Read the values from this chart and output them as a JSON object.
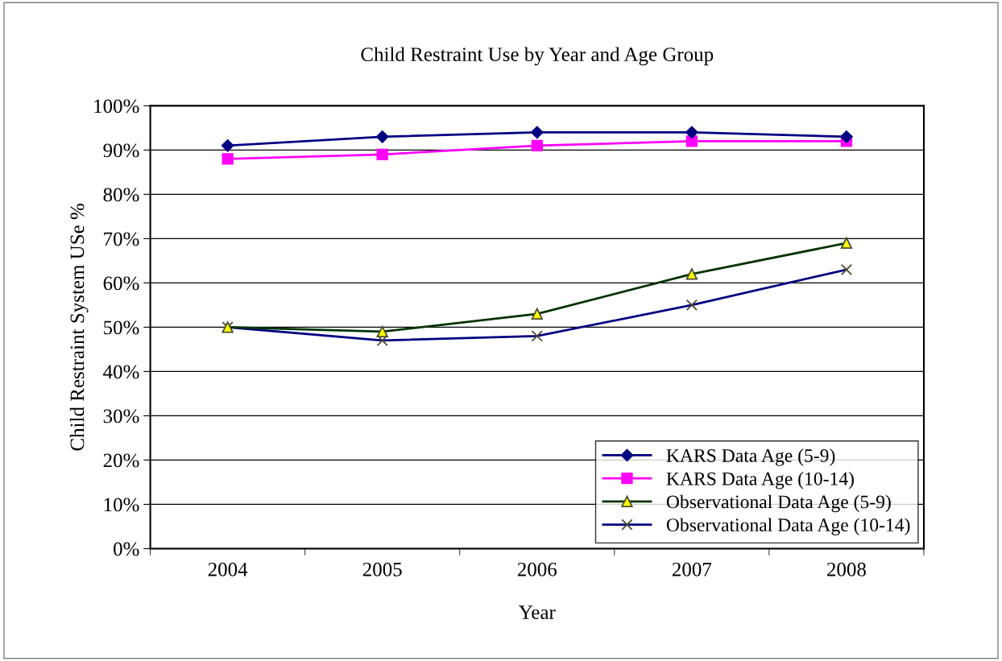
{
  "chart_data": {
    "type": "line",
    "title": "Child Restraint Use by Year and Age Group",
    "xlabel": "Year",
    "ylabel": "Child Restraint System USe %",
    "categories": [
      "2004",
      "2005",
      "2006",
      "2007",
      "2008"
    ],
    "series": [
      {
        "name": "KARS Data Age (5-9)",
        "color": "#000080",
        "marker": "diamond",
        "values": [
          91,
          93,
          94,
          94,
          93
        ]
      },
      {
        "name": "KARS Data Age (10-14)",
        "color": "#ff00ff",
        "marker": "square",
        "values": [
          88,
          89,
          91,
          92,
          92
        ]
      },
      {
        "name": "Observational Data Age (5-9)",
        "color": "#003300",
        "marker": "triangle",
        "values": [
          50,
          49,
          53,
          62,
          69
        ]
      },
      {
        "name": "Observational Data Age (10-14)",
        "color": "#000080",
        "marker": "cross",
        "values": [
          50,
          47,
          48,
          55,
          63
        ]
      }
    ],
    "ylim": [
      0,
      100
    ],
    "yticks": [
      {
        "value": 0,
        "label": "0%"
      },
      {
        "value": 10,
        "label": "10%"
      },
      {
        "value": 20,
        "label": "20%"
      },
      {
        "value": 30,
        "label": "30%"
      },
      {
        "value": 40,
        "label": "40%"
      },
      {
        "value": 50,
        "label": "50%"
      },
      {
        "value": 60,
        "label": "60%"
      },
      {
        "value": 70,
        "label": "70%"
      },
      {
        "value": 80,
        "label": "80%"
      },
      {
        "value": 90,
        "label": "90%"
      },
      {
        "value": 100,
        "label": "100%"
      }
    ],
    "grid": "y",
    "legend": "bottom right",
    "line_style": "solid"
  }
}
